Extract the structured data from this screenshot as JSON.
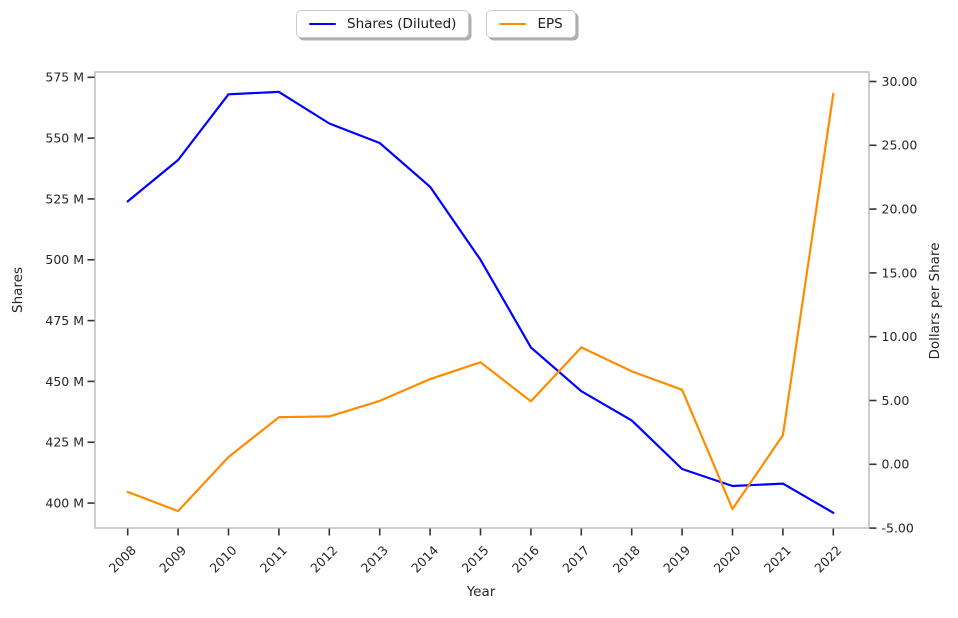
{
  "chart_data": {
    "type": "line",
    "title": "",
    "x_label": "Year",
    "y_left_label": "Shares",
    "y_right_label": "Dollars per Share",
    "categories": [
      "2008",
      "2009",
      "2010",
      "2011",
      "2012",
      "2013",
      "2014",
      "2015",
      "2016",
      "2017",
      "2018",
      "2019",
      "2020",
      "2021",
      "2022"
    ],
    "series": [
      {
        "name": "Shares (Diluted)",
        "axis": "left",
        "color": "#0000ff",
        "unit": "millions of shares",
        "values": [
          524,
          541,
          568,
          569,
          556,
          548,
          530,
          500,
          464,
          446,
          434,
          414,
          407,
          408,
          396
        ]
      },
      {
        "name": "EPS",
        "axis": "right",
        "color": "#ff8c00",
        "unit": "dollars per share",
        "values": [
          -2.16,
          -3.67,
          0.57,
          3.69,
          3.75,
          4.97,
          6.68,
          7.99,
          4.94,
          9.16,
          7.29,
          5.84,
          -3.5,
          2.27,
          29.04
        ]
      }
    ],
    "y_left_axis": {
      "ticks": [
        {
          "value": 575,
          "label": "575 M"
        },
        {
          "value": 550,
          "label": "550 M"
        },
        {
          "value": 525,
          "label": "525 M"
        },
        {
          "value": 500,
          "label": "500 M"
        },
        {
          "value": 475,
          "label": "475 M"
        },
        {
          "value": 450,
          "label": "450 M"
        },
        {
          "value": 425,
          "label": "425 M"
        },
        {
          "value": 400,
          "label": "400 M"
        }
      ]
    },
    "y_right_axis": {
      "ticks": [
        {
          "value": 30,
          "label": "30.00"
        },
        {
          "value": 25,
          "label": "25.00"
        },
        {
          "value": 20,
          "label": "20.00"
        },
        {
          "value": 15,
          "label": "15.00"
        },
        {
          "value": 10,
          "label": "10.00"
        },
        {
          "value": 5,
          "label": "5.00"
        },
        {
          "value": 0,
          "label": "0.00"
        },
        {
          "value": -5,
          "label": "-5.00"
        }
      ]
    },
    "grid": false,
    "legend_position": "top-center"
  },
  "legend": {
    "items": [
      {
        "label": "Shares (Diluted)",
        "color": "#0000ff"
      },
      {
        "label": "EPS",
        "color": "#ff8c00"
      }
    ]
  }
}
